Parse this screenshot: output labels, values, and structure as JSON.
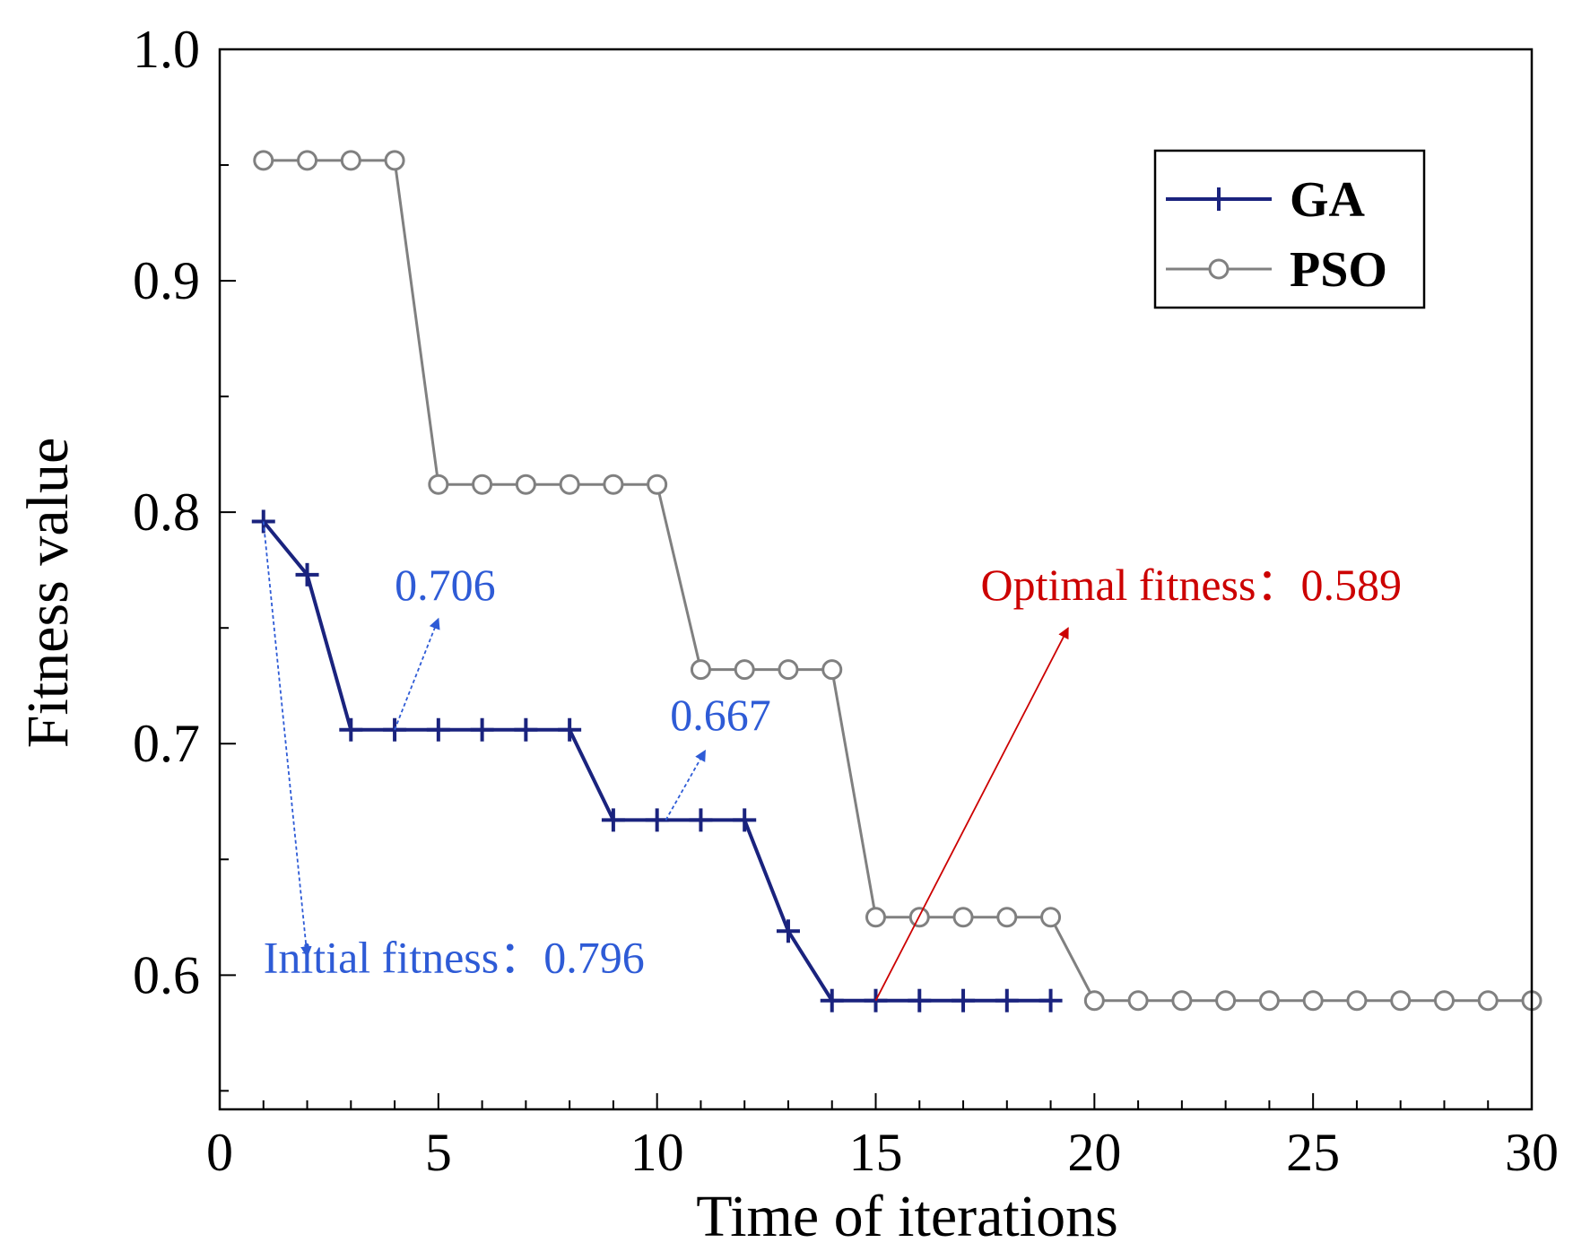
{
  "chart_data": {
    "type": "line",
    "xlabel": "Time of iterations",
    "ylabel": "Fitness value",
    "xlim": [
      0,
      30
    ],
    "ylim": [
      0.542,
      1.0
    ],
    "x_ticks": [
      0,
      5,
      10,
      15,
      20,
      25,
      30
    ],
    "x_tick_labels": [
      "0",
      "5",
      "10",
      "15",
      "20",
      "25",
      "30"
    ],
    "y_ticks": [
      0.6,
      0.7,
      0.8,
      0.9,
      1.0
    ],
    "y_tick_labels": [
      "0.6",
      "0.7",
      "0.8",
      "0.9",
      "1.0"
    ],
    "grid": false,
    "legend_position": "top-right",
    "series": [
      {
        "name": "GA",
        "color": "#1a237e",
        "marker": "plus",
        "x": [
          1,
          2,
          3,
          4,
          5,
          6,
          7,
          8,
          9,
          10,
          11,
          12,
          13,
          14,
          15,
          16,
          17,
          18,
          19
        ],
        "values": [
          0.796,
          0.773,
          0.706,
          0.706,
          0.706,
          0.706,
          0.706,
          0.706,
          0.667,
          0.667,
          0.667,
          0.667,
          0.619,
          0.589,
          0.589,
          0.589,
          0.589,
          0.589,
          0.589
        ]
      },
      {
        "name": "PSO",
        "color": "#808080",
        "marker": "circle",
        "x": [
          1,
          2,
          3,
          4,
          5,
          6,
          7,
          8,
          9,
          10,
          11,
          12,
          13,
          14,
          15,
          16,
          17,
          18,
          19,
          20,
          21,
          22,
          23,
          24,
          25,
          26,
          27,
          28,
          29,
          30
        ],
        "values": [
          0.952,
          0.952,
          0.952,
          0.952,
          0.812,
          0.812,
          0.812,
          0.812,
          0.812,
          0.812,
          0.732,
          0.732,
          0.732,
          0.732,
          0.625,
          0.625,
          0.625,
          0.625,
          0.625,
          0.589,
          0.589,
          0.589,
          0.589,
          0.589,
          0.589,
          0.589,
          0.589,
          0.589,
          0.589,
          0.589
        ]
      }
    ],
    "annotations": [
      {
        "label": "Initial fitness：0.796",
        "color": "#2e5bd6",
        "arrow_from": [
          1,
          0.796
        ],
        "arrow_to": [
          2,
          0.608
        ],
        "text_at": [
          1,
          0.601
        ]
      },
      {
        "label": "0.706",
        "color": "#2e5bd6",
        "arrow_from": [
          4,
          0.706
        ],
        "arrow_to": [
          5,
          0.754
        ],
        "text_at": [
          4,
          0.762
        ]
      },
      {
        "label": "0.667",
        "color": "#2e5bd6",
        "arrow_from": [
          10.2,
          0.667
        ],
        "arrow_to": [
          11.1,
          0.697
        ],
        "text_at": [
          10.3,
          0.706
        ]
      },
      {
        "label": "Optimal fitness：0.589",
        "color": "#cc0000",
        "arrow_from": [
          15,
          0.589
        ],
        "arrow_to": [
          19.4,
          0.75
        ],
        "text_at": [
          17.4,
          0.762
        ]
      }
    ]
  }
}
